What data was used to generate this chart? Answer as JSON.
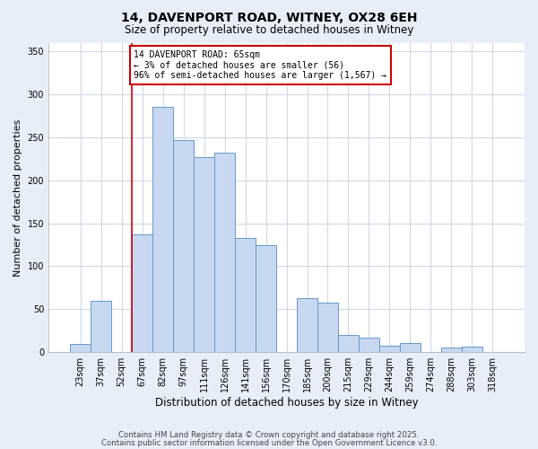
{
  "title1": "14, DAVENPORT ROAD, WITNEY, OX28 6EH",
  "title2": "Size of property relative to detached houses in Witney",
  "xlabel": "Distribution of detached houses by size in Witney",
  "ylabel": "Number of detached properties",
  "bar_labels": [
    "23sqm",
    "37sqm",
    "52sqm",
    "67sqm",
    "82sqm",
    "97sqm",
    "111sqm",
    "126sqm",
    "141sqm",
    "156sqm",
    "170sqm",
    "185sqm",
    "200sqm",
    "215sqm",
    "229sqm",
    "244sqm",
    "259sqm",
    "274sqm",
    "288sqm",
    "303sqm",
    "318sqm"
  ],
  "bar_values": [
    10,
    60,
    0,
    137,
    285,
    247,
    227,
    232,
    133,
    125,
    0,
    63,
    58,
    20,
    17,
    8,
    11,
    0,
    5,
    6,
    0
  ],
  "ylim": [
    0,
    360
  ],
  "yticks": [
    0,
    50,
    100,
    150,
    200,
    250,
    300,
    350
  ],
  "bar_color": "#c8d8f0",
  "bar_edge_color": "#6699cc",
  "vline_index": 3,
  "vline_color": "#cc0000",
  "annotation_text": "14 DAVENPORT ROAD: 65sqm\n← 3% of detached houses are smaller (56)\n96% of semi-detached houses are larger (1,567) →",
  "annotation_box_color": "#ffffff",
  "annotation_box_edge": "#cc0000",
  "plot_bg_color": "#ffffff",
  "fig_bg_color": "#e8eef8",
  "grid_color": "#d0d8e8",
  "footer1": "Contains HM Land Registry data © Crown copyright and database right 2025.",
  "footer2": "Contains public sector information licensed under the Open Government Licence v3.0."
}
